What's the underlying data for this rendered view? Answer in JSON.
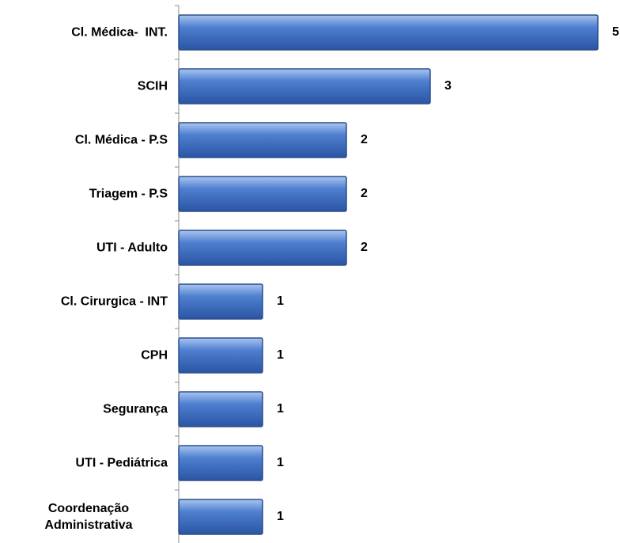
{
  "chart_data": {
    "type": "bar",
    "orientation": "horizontal",
    "categories": [
      "Cl. Médica-  INT.",
      "SCIH",
      "Cl. Médica - P.S",
      "Triagem - P.S",
      "UTI - Adulto",
      "Cl. Cirurgica - INT",
      "CPH",
      "Segurança",
      "UTI - Pediátrica",
      "Coordenação Administrativa"
    ],
    "values": [
      5,
      3,
      2,
      2,
      2,
      1,
      1,
      1,
      1,
      1
    ],
    "color": "#4472c4",
    "xlim": [
      0,
      5
    ]
  }
}
